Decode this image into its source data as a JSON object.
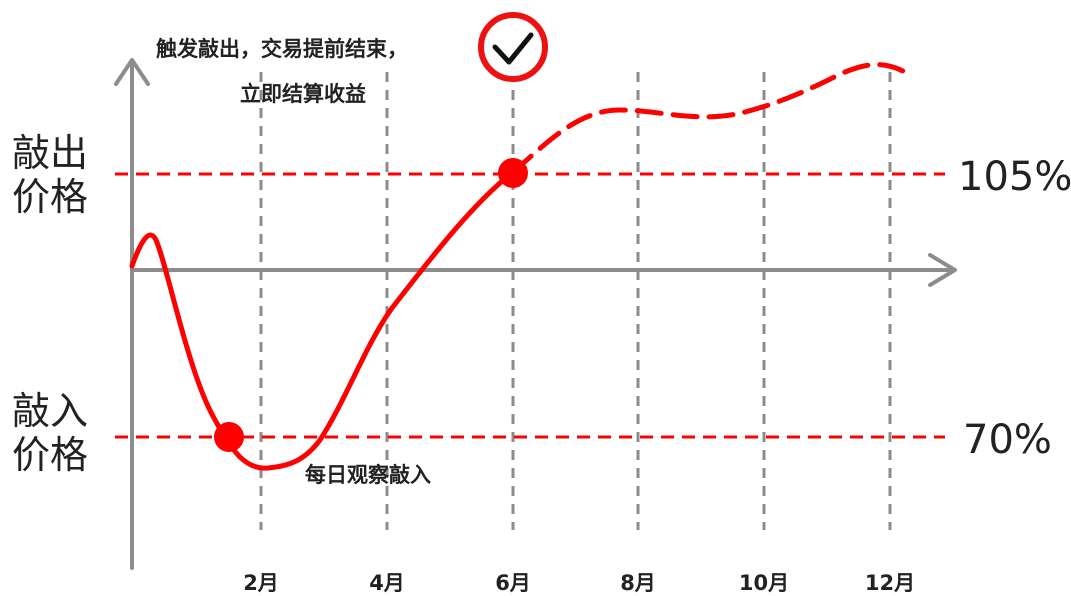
{
  "labels": {
    "knockout_price_line1": "敲出",
    "knockout_price_line2": "价格",
    "knockin_price_line1": "敲入",
    "knockin_price_line2": "价格",
    "knockout_pct": "105%",
    "knockin_pct": "70%",
    "knockout_note_line1": "触发敲出，交易提前结束，",
    "knockout_note_line2": "立即结算收益",
    "knockin_note": "每日观察敲入"
  },
  "months": [
    "2月",
    "4月",
    "6月",
    "8月",
    "10月",
    "12月"
  ],
  "colors": {
    "accent": "#ff0000",
    "axis": "#8c8c8c",
    "text": "#222222"
  },
  "icons": {
    "confirm": "checkmark-circle-icon"
  }
}
